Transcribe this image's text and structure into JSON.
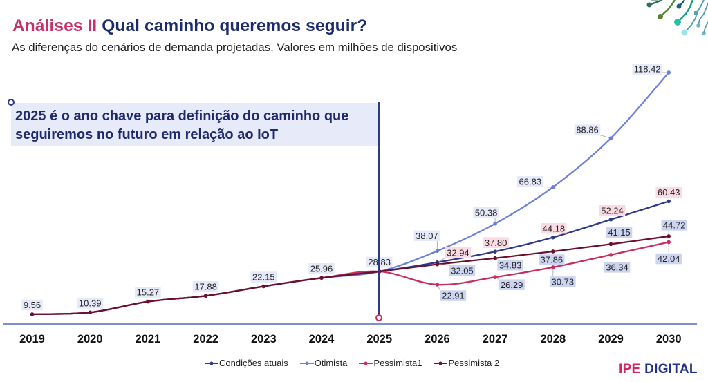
{
  "header": {
    "title_accent": "Análises II",
    "title_main": "Qual caminho queremos seguir?",
    "subtitle": "As diferenças do cenários de demanda projetadas. Valores em milhões de dispositivos"
  },
  "callout": {
    "line1": "2025 é o ano chave para definição do caminho que",
    "line2": "seguiremos no futuro em relação ao IoT",
    "highlight_year": "2025"
  },
  "brand": {
    "part1": "IPE",
    "part2": "DIGITAL"
  },
  "decoration": {
    "icon": "circuit-decoration-icon"
  },
  "colors": {
    "accent_pink": "#c9306a",
    "navy": "#1c2a6e",
    "label_bg_default": "#e6e9f7",
    "label_bg_current": "#fbdbe3",
    "label_bg_pessimist": "#cdd4f0",
    "axis": "#7f8fcf",
    "leader": "#b3b3b3"
  },
  "chart_data": {
    "type": "line",
    "title": "Qual caminho queremos seguir?",
    "subtitle": "As diferenças do cenários de demanda projetadas. Valores em milhões de dispositivos",
    "xlabel": "",
    "ylabel": "",
    "units": "milhões de dispositivos",
    "categories": [
      "2019",
      "2020",
      "2021",
      "2022",
      "2023",
      "2024",
      "2025",
      "2026",
      "2027",
      "2028",
      "2029",
      "2030"
    ],
    "history_end_index": 6,
    "series": [
      {
        "name": "Condições atuais",
        "color": "#2d3a8c",
        "values": [
          9.56,
          10.39,
          15.27,
          17.88,
          22.15,
          25.96,
          28.83,
          32.94,
          37.8,
          44.18,
          52.24,
          60.43
        ]
      },
      {
        "name": "Otimista",
        "color": "#6a80dc",
        "values": [
          9.56,
          10.39,
          15.27,
          17.88,
          22.15,
          25.96,
          28.83,
          38.07,
          50.38,
          66.83,
          88.86,
          118.42
        ]
      },
      {
        "name": "Pessimista1",
        "color": "#c92d5f",
        "values": [
          9.56,
          10.39,
          15.27,
          17.88,
          22.15,
          25.96,
          28.83,
          22.91,
          26.29,
          30.73,
          36.34,
          42.04
        ]
      },
      {
        "name": "Pessimista 2",
        "color": "#6b1030",
        "values": [
          9.56,
          10.39,
          15.27,
          17.88,
          22.15,
          25.96,
          28.83,
          32.05,
          34.83,
          37.86,
          41.15,
          44.72
        ]
      }
    ],
    "data_labels": true,
    "smooth": true,
    "grid": false,
    "y_axis_visible": false,
    "legend_position": "bottom",
    "annotation": {
      "x": "2025",
      "text": "2025 é o ano chave para definição do caminho que seguiremos no futuro em relação ao IoT"
    }
  }
}
